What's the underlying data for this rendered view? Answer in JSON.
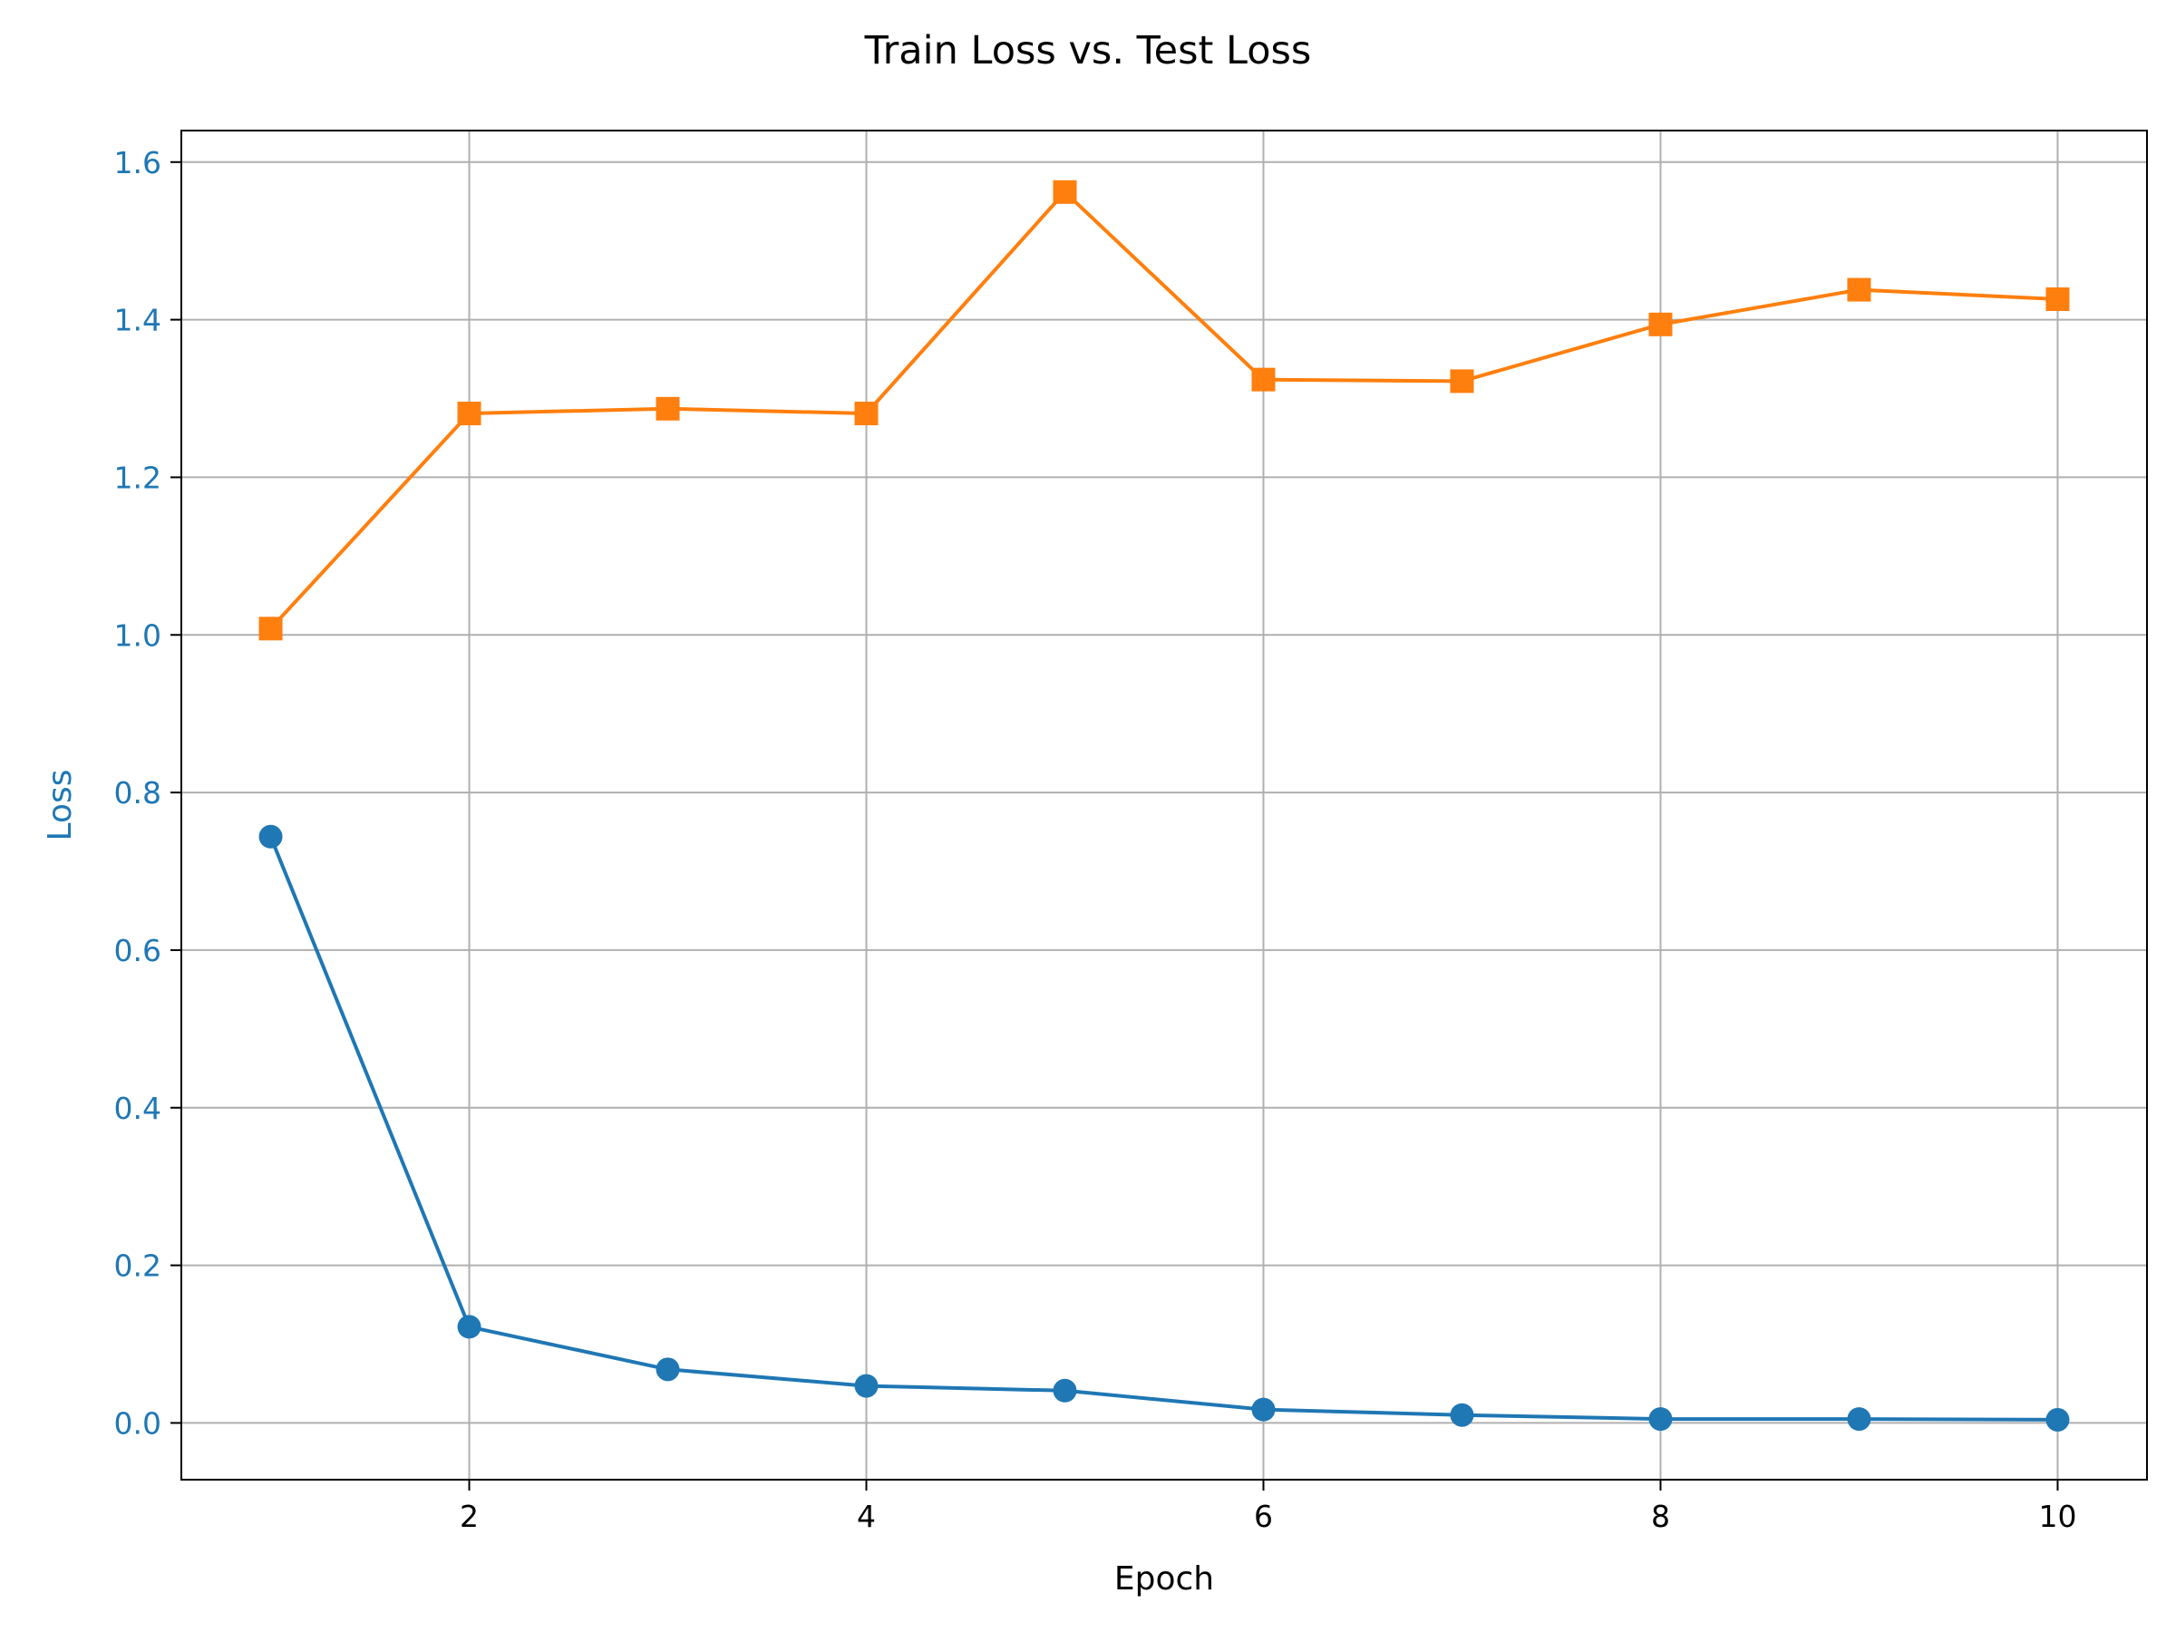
{
  "chart_data": {
    "type": "line",
    "title": "Train Loss vs. Test Loss",
    "xlabel": "Epoch",
    "ylabel": "Loss",
    "xlim": [
      0.55,
      10.45
    ],
    "ylim": [
      -0.072,
      1.64
    ],
    "x_ticks": [
      2,
      4,
      6,
      8,
      10
    ],
    "y_ticks": [
      0.0,
      0.2,
      0.4,
      0.6,
      0.8,
      1.0,
      1.2,
      1.4,
      1.6
    ],
    "grid": true,
    "legend": "none",
    "x": [
      1,
      2,
      3,
      4,
      5,
      6,
      7,
      8,
      9,
      10
    ],
    "series": [
      {
        "marker": "circle",
        "color": "#1f77b4",
        "values": [
          0.744,
          0.122,
          0.068,
          0.047,
          0.041,
          0.017,
          0.01,
          0.005,
          0.005,
          0.004
        ]
      },
      {
        "marker": "square",
        "color": "#ff7f0e",
        "values": [
          1.008,
          1.281,
          1.287,
          1.281,
          1.562,
          1.324,
          1.322,
          1.394,
          1.438,
          1.426
        ]
      }
    ],
    "ytick_color": "#1f77b4",
    "ylabel_color": "#1f77b4"
  }
}
